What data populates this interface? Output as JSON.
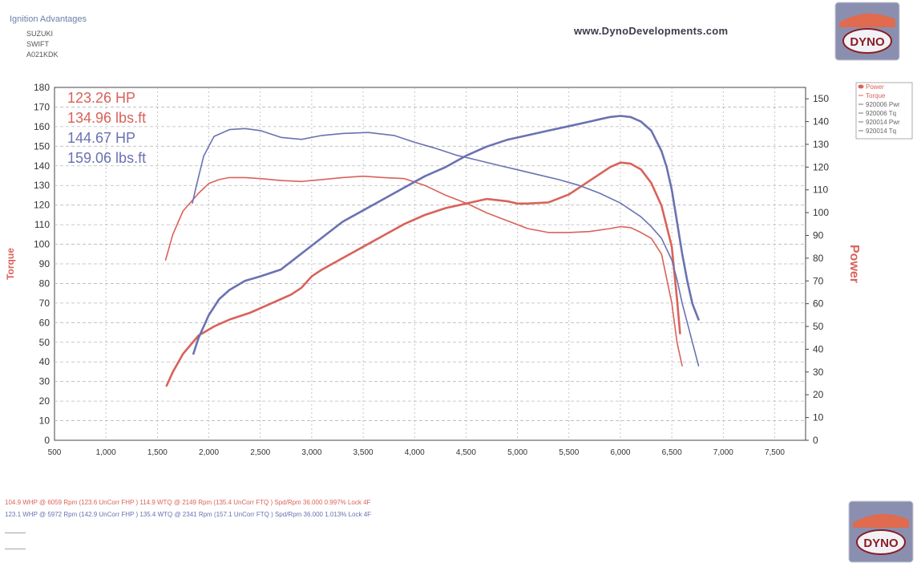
{
  "header": {
    "title": "Ignition Advantages",
    "make": "SUZUKI",
    "model": "SWIFT",
    "reg": "A021KDK",
    "website": "www.DynoDevelopments.com"
  },
  "logo": {
    "text": "DYNO"
  },
  "colors": {
    "red": "#d9625a",
    "blue": "#6a72b0",
    "grid": "#b8b8b8"
  },
  "chart_data": {
    "type": "line",
    "xlabel": "",
    "ylabel_left": "Torque",
    "ylabel_right": "Power",
    "xlim": [
      500,
      7800
    ],
    "ylim_left": [
      0,
      180
    ],
    "ylim_right": [
      0,
      155
    ],
    "x_ticks": [
      "500",
      "1,000",
      "1,500",
      "2,000",
      "2,500",
      "3,000",
      "3,500",
      "4,000",
      "4,500",
      "5,000",
      "5,500",
      "6,000",
      "6,500",
      "7,000",
      "7,500"
    ],
    "y_left_ticks": [
      "0",
      "10",
      "20",
      "30",
      "40",
      "50",
      "60",
      "70",
      "80",
      "90",
      "100",
      "110",
      "120",
      "130",
      "140",
      "150",
      "160",
      "170",
      "180"
    ],
    "y_right_ticks": [
      "0",
      "10",
      "20",
      "30",
      "40",
      "50",
      "60",
      "70",
      "80",
      "90",
      "100",
      "110",
      "120",
      "130",
      "140",
      "150"
    ],
    "grid": true,
    "annotations": [
      {
        "text": "123.26 HP",
        "color": "red"
      },
      {
        "text": "134.96 lbs.ft",
        "color": "red"
      },
      {
        "text": "144.67 HP",
        "color": "blue"
      },
      {
        "text": "159.06 lbs.ft",
        "color": "blue"
      }
    ],
    "legend": {
      "placement": "top-right",
      "entries": [
        "Power",
        "Torque",
        "920006 Pwr",
        "920006 Tq",
        "920014 Pwr",
        "920014 Tq"
      ]
    },
    "series": [
      {
        "name": "920006 Tq",
        "axis": "left",
        "color": "red",
        "x": [
          1580,
          1650,
          1750,
          1900,
          2000,
          2100,
          2200,
          2350,
          2500,
          2700,
          2900,
          3100,
          3300,
          3500,
          3700,
          3900,
          4100,
          4300,
          4500,
          4700,
          4900,
          5100,
          5300,
          5500,
          5700,
          5900,
          6000,
          6100,
          6200,
          6300,
          6400,
          6500,
          6550,
          6600
        ],
        "y": [
          92,
          105,
          117,
          126,
          131,
          133,
          134,
          134,
          133.5,
          132.5,
          132,
          133,
          134,
          134.7,
          134,
          133.5,
          130,
          125,
          121,
          116,
          112,
          108,
          106,
          106,
          106.5,
          108,
          109,
          108.5,
          106,
          103,
          95,
          70,
          50,
          38
        ]
      },
      {
        "name": "920006 Pwr",
        "axis": "right",
        "color": "red",
        "x": [
          1590,
          1650,
          1750,
          1900,
          2050,
          2200,
          2400,
          2600,
          2700,
          2800,
          2900,
          3000,
          3100,
          3300,
          3500,
          3700,
          3900,
          4100,
          4300,
          4500,
          4700,
          4900,
          5000,
          5100,
          5300,
          5500,
          5700,
          5900,
          6000,
          6100,
          6200,
          6300,
          6400,
          6500,
          6550,
          6580
        ],
        "y": [
          24,
          30,
          38,
          46,
          50,
          53,
          56,
          60,
          62,
          64,
          67,
          72,
          75,
          80,
          85,
          90,
          95,
          99,
          102,
          104,
          106,
          105,
          104,
          104,
          104.5,
          108,
          114,
          120,
          122,
          121.5,
          119,
          113,
          103,
          85,
          62,
          47
        ]
      },
      {
        "name": "920014 Tq",
        "axis": "left",
        "color": "blue",
        "x": [
          1840,
          1880,
          1950,
          2050,
          2200,
          2350,
          2500,
          2700,
          2900,
          3100,
          3300,
          3550,
          3800,
          4000,
          4200,
          4400,
          4600,
          4800,
          5000,
          5200,
          5400,
          5600,
          5800,
          6000,
          6200,
          6300,
          6400,
          6500,
          6550,
          6600,
          6650,
          6700,
          6760
        ],
        "y": [
          121,
          130,
          145,
          155,
          158.5,
          159,
          158,
          154.5,
          153.5,
          155.5,
          156.5,
          157,
          155.5,
          152,
          149,
          145.5,
          143,
          140.5,
          138,
          135.5,
          133,
          130,
          126,
          121,
          114,
          109,
          103,
          92,
          82,
          70,
          60,
          50,
          38
        ]
      },
      {
        "name": "920014 Pwr",
        "axis": "right",
        "color": "blue",
        "x": [
          1850,
          1900,
          2000,
          2100,
          2200,
          2350,
          2500,
          2700,
          2900,
          3100,
          3300,
          3500,
          3700,
          3900,
          4100,
          4300,
          4500,
          4700,
          4900,
          5100,
          5300,
          5500,
          5700,
          5800,
          5900,
          6000,
          6100,
          6200,
          6300,
          6400,
          6450,
          6500,
          6550,
          6600,
          6650,
          6700,
          6760
        ],
        "y": [
          38,
          45,
          55,
          62,
          66,
          70,
          72,
          75,
          82,
          89,
          96,
          101,
          106,
          111,
          116,
          120,
          125,
          129,
          132,
          134,
          136,
          138,
          140,
          141,
          142,
          142.5,
          142,
          140,
          136,
          127,
          120,
          110,
          96,
          82,
          70,
          60,
          53
        ]
      }
    ],
    "summary": [
      "104.9 WHP @ 6059 Rpm (123.6 UnCorr FHP )  114.9 WTQ @ 2149 Rpm (135.4 UnCorr FTQ ) Spd/Rpm 36.000 0.997% Lock 4F",
      "123.1 WHP @ 5972 Rpm (142.9 UnCorr FHP )  135.4 WTQ @ 2341 Rpm (157.1 UnCorr FTQ ) Spd/Rpm 36.000 1.013% Lock 4F"
    ]
  }
}
